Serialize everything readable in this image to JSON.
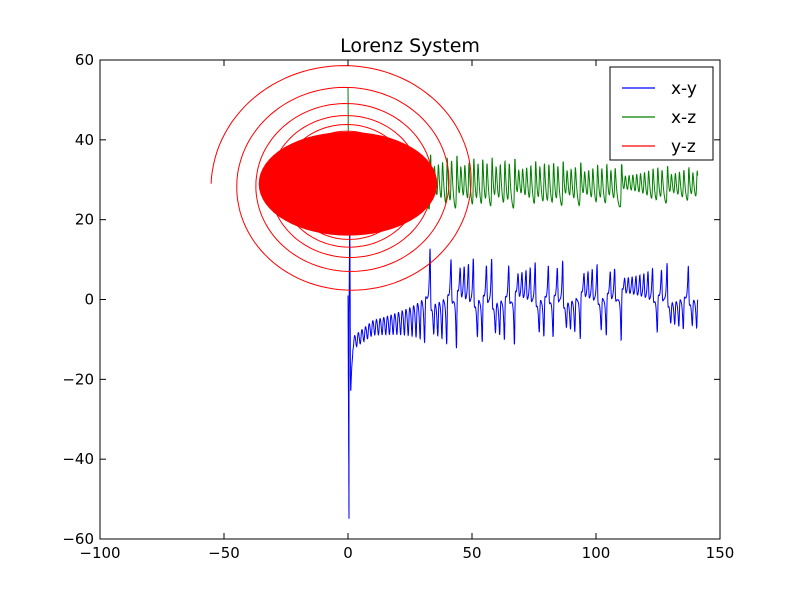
{
  "chart_data": {
    "type": "line",
    "title": "Lorenz System",
    "xlabel": "",
    "ylabel": "",
    "xlim": [
      -100,
      150
    ],
    "ylim": [
      -60,
      60
    ],
    "x_ticks": [
      -100,
      -50,
      0,
      50,
      100,
      150
    ],
    "y_ticks": [
      -60,
      -40,
      -20,
      0,
      20,
      40,
      60
    ],
    "x_tick_labels": [
      "−100",
      "−50",
      "0",
      "50",
      "100",
      "150"
    ],
    "y_tick_labels": [
      "−60",
      "−40",
      "−20",
      "0",
      "20",
      "40",
      "60"
    ],
    "grid": false,
    "legend_position": "top-right",
    "series": [
      {
        "name": "x-y",
        "color": "#0000ff",
        "x_range": [
          0,
          141
        ],
        "y_range": [
          -55,
          17
        ],
        "y_envelope_lower_at_x": [
          [
            0.5,
            -55
          ],
          [
            2,
            -25
          ],
          [
            10,
            -19
          ],
          [
            30,
            -15
          ],
          [
            60,
            -13
          ],
          [
            100,
            -11
          ],
          [
            141,
            -10
          ]
        ],
        "y_envelope_upper_at_x": [
          [
            0.5,
            17
          ],
          [
            30,
            15
          ],
          [
            60,
            12
          ],
          [
            100,
            11
          ],
          [
            141,
            10
          ]
        ]
      },
      {
        "name": "x-z",
        "color": "#008000",
        "x_range": [
          0,
          141
        ],
        "y_range": [
          0,
          53
        ],
        "y_envelope_lower_at_x": [
          [
            0,
            21
          ],
          [
            40,
            22
          ],
          [
            100,
            23
          ],
          [
            141,
            24
          ]
        ],
        "y_envelope_upper_at_x": [
          [
            0,
            37
          ],
          [
            40,
            36
          ],
          [
            100,
            34
          ],
          [
            141,
            33
          ]
        ]
      },
      {
        "name": "y-z",
        "color": "#ff0000",
        "x_range": [
          -55,
          35
        ],
        "y_range": [
          0,
          53
        ],
        "center": [
          0,
          29
        ]
      }
    ]
  }
}
